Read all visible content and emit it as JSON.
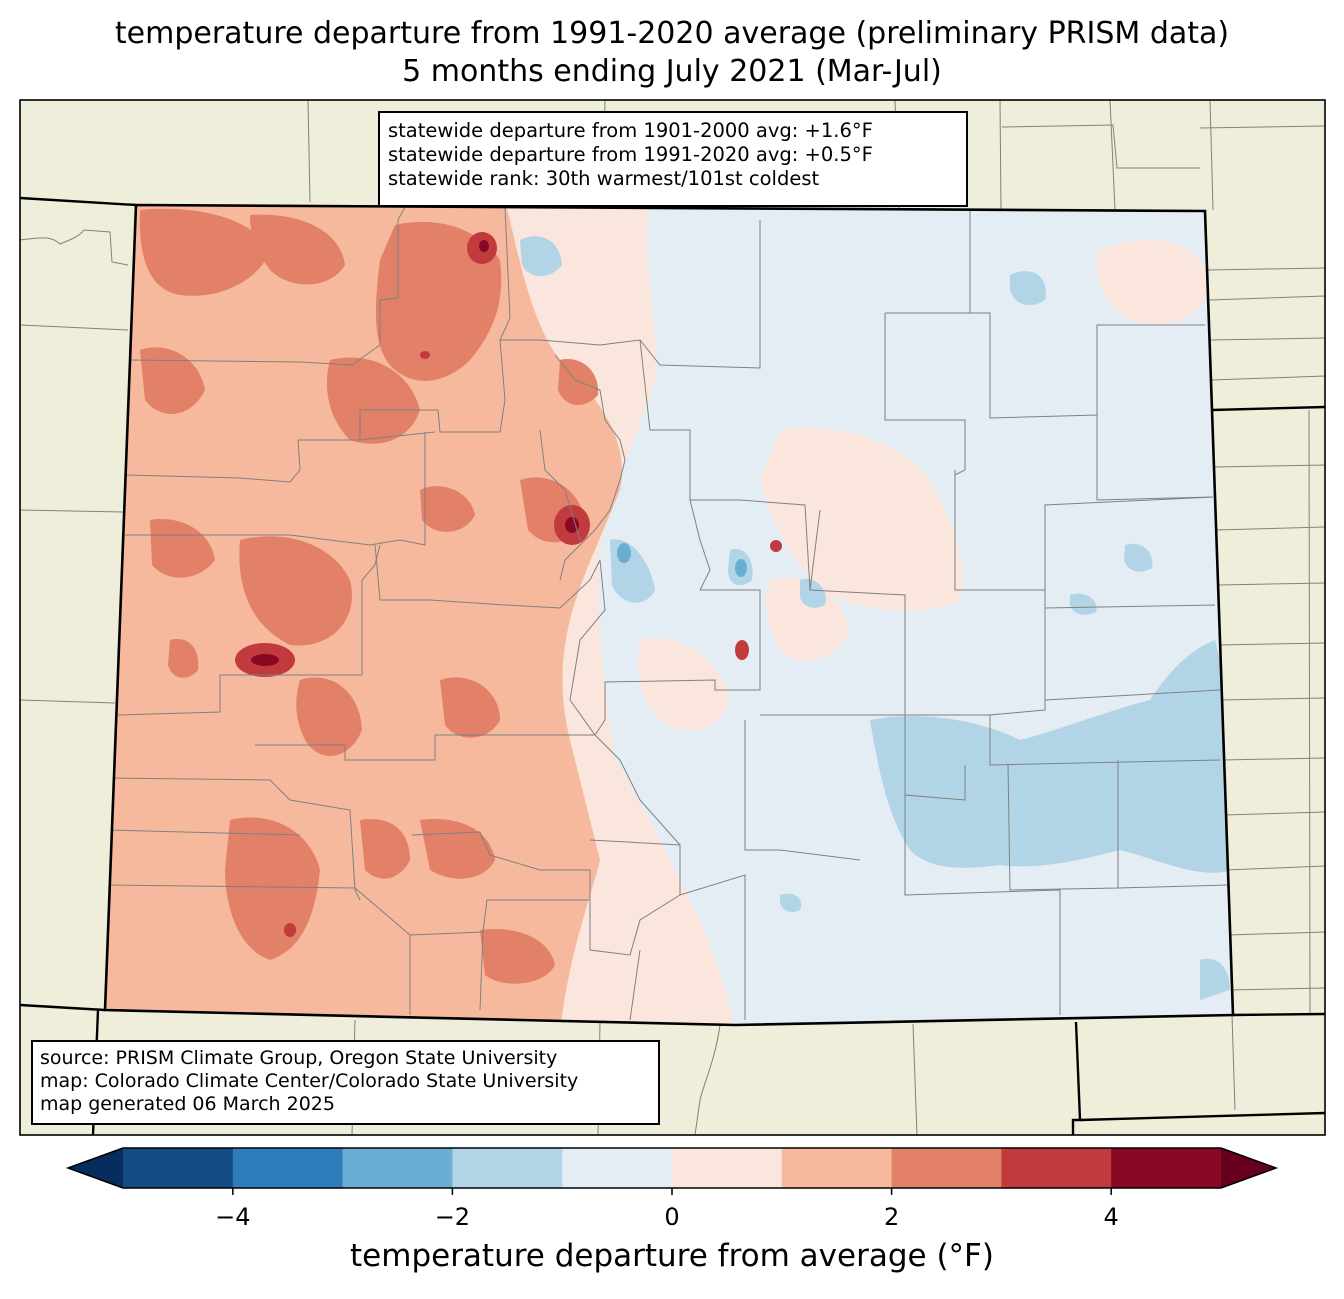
{
  "title": {
    "line1": "temperature departure from 1991-2020 average (preliminary PRISM data)",
    "line2": "5 months ending July 2021 (Mar-Jul)"
  },
  "stats": {
    "line1": "statewide departure from 1901-2000 avg: +1.6°F",
    "line2": "statewide departure from 1991-2020 avg: +0.5°F",
    "line3": "statewide rank: 30th warmest/101st coldest"
  },
  "credits": {
    "line1": "source: PRISM Climate Group, Oregon State University",
    "line2": "map: Colorado Climate Center/Colorado State University",
    "line3": "map generated 06 March 2025"
  },
  "colorbar": {
    "label": "temperature departure from average (°F)",
    "min": -5,
    "max": 5,
    "bins": [
      {
        "from": -5,
        "to": -4,
        "color": "#144b87"
      },
      {
        "from": -4,
        "to": -3,
        "color": "#2f7cba"
      },
      {
        "from": -3,
        "to": -2,
        "color": "#6aaed3"
      },
      {
        "from": -2,
        "to": -1,
        "color": "#b1d4e6"
      },
      {
        "from": -1,
        "to": 0,
        "color": "#e4edf4"
      },
      {
        "from": 0,
        "to": 1,
        "color": "#fae6dd"
      },
      {
        "from": 1,
        "to": 2,
        "color": "#f7b99d"
      },
      {
        "from": 2,
        "to": 3,
        "color": "#e28068"
      },
      {
        "from": 3,
        "to": 4,
        "color": "#c13a3e"
      },
      {
        "from": 4,
        "to": 5,
        "color": "#880923"
      }
    ],
    "under_color": "#072d5e",
    "over_color": "#67001f",
    "ticks": [
      {
        "value": -4,
        "label": "−4"
      },
      {
        "value": -2,
        "label": "−2"
      },
      {
        "value": 0,
        "label": "0"
      },
      {
        "value": 2,
        "label": "2"
      },
      {
        "value": 4,
        "label": "4"
      }
    ]
  },
  "colors": {
    "land": "#efeedb",
    "warm_west": "#f7b99d",
    "cool_east": "#e4edf4",
    "county_line": "#808080"
  }
}
